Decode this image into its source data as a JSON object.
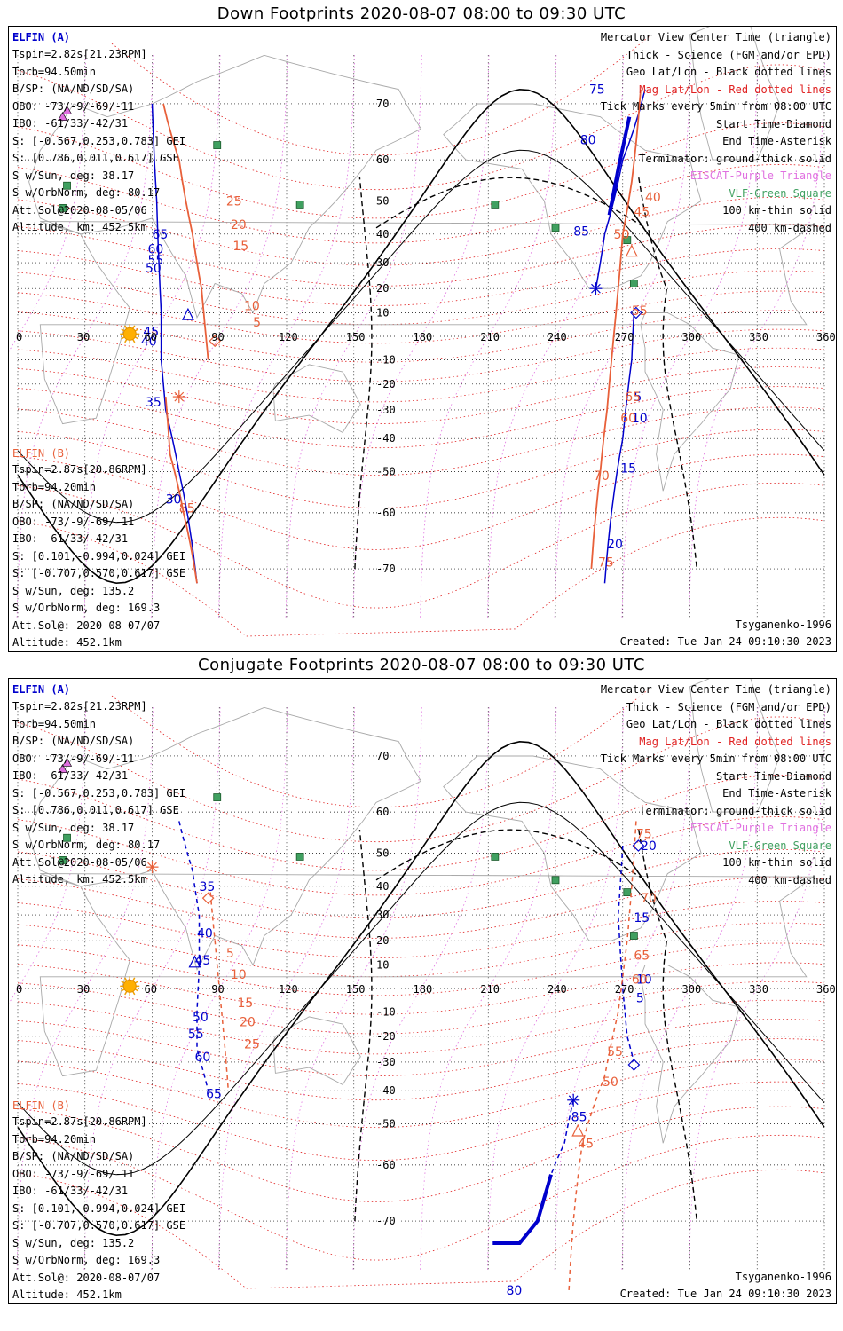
{
  "panels": [
    {
      "title": "Down Footprints 2020-08-07 08:00 to 09:30 UTC",
      "sat_a": {
        "name": "ELFIN (A)",
        "lines": [
          "Tspin=2.82s[21.23RPM]",
          "Torb=94.50min",
          "B/SP: (NA/ND/SD/SA)",
          "OBO: -73/-9/-69/-11",
          "IBO: -61/33/-42/31",
          "S: [-0.567,0.253,0.783] GEI",
          "S: [0.786,0.011,0.617] GSE",
          "S w/Sun, deg: 38.17",
          "S w/OrbNorm, deg: 80.17",
          "Att.Sol@2020-08-05/06",
          "Altitude, km: 452.5km"
        ]
      },
      "sat_b": {
        "name": "ELFIN (B)",
        "lines": [
          "Tspin=2.87s[20.86RPM]",
          "Torb=94.20min",
          "B/SP: (NA/ND/SD/SA)",
          "OBO: -73/-9/-69/-11",
          "IBO: -61/33/-42/31",
          "S: [0.101,-0.994,0.024] GEI",
          "S: [-0.707,0.570,0.617] GSE",
          "S w/Sun, deg: 135.2",
          "S w/OrbNorm, deg: 169.3",
          "Att.Sol@: 2020-08-07/07",
          "Altitude: 452.1km"
        ]
      },
      "model": "Tsyganenko-1996",
      "created": "Created: Tue Jan 24 09:10:30 2023"
    },
    {
      "title": "Conjugate Footprints 2020-08-07 08:00 to 09:30 UTC",
      "sat_a": {
        "name": "ELFIN (A)",
        "lines": [
          "Tspin=2.82s[21.23RPM]",
          "Torb=94.50min",
          "B/SP: (NA/ND/SD/SA)",
          "OBO: -73/-9/-69/-11",
          "IBO: -61/33/-42/31",
          "S: [-0.567,0.253,0.783] GEI",
          "S: [0.786,0.011,0.617] GSE",
          "S w/Sun, deg: 38.17",
          "S w/OrbNorm, deg: 80.17",
          "Att.Sol@2020-08-05/06",
          "Altitude, km: 452.5km"
        ]
      },
      "sat_b": {
        "name": "ELFIN (B)",
        "lines": [
          "Tspin=2.87s[20.86RPM]",
          "Torb=94.20min",
          "B/SP: (NA/ND/SD/SA)",
          "OBO: -73/-9/-69/-11",
          "IBO: -61/33/-42/31",
          "S: [0.101,-0.994,0.024] GEI",
          "S: [-0.707,0.570,0.617] GSE",
          "S w/Sun, deg: 135.2",
          "S w/OrbNorm, deg: 169.3",
          "Att.Sol@: 2020-08-07/07",
          "Altitude: 452.1km"
        ]
      },
      "model": "Tsyganenko-1996",
      "created": "Created: Tue Jan 24 09:10:30 2023"
    }
  ],
  "legend": [
    {
      "text": "Mercator View Center Time (triangle)",
      "color": "#000000"
    },
    {
      "text": "Thick - Science (FGM and/or EPD)",
      "color": "#000000"
    },
    {
      "text": "Geo Lat/Lon - Black dotted lines",
      "color": "#000000"
    },
    {
      "text": "Mag Lat/Lon - Red dotted lines",
      "color": "#e02020"
    },
    {
      "text": "Tick Marks every 5min from 08:00 UTC",
      "color": "#000000"
    },
    {
      "text": "Start Time-Diamond",
      "color": "#000000"
    },
    {
      "text": "End Time-Asterisk",
      "color": "#000000"
    },
    {
      "text": "Terminator: ground-thick solid",
      "color": "#000000"
    },
    {
      "text": "EISCAT-Purple Triangle",
      "color": "#e070e0"
    },
    {
      "text": "VLF-Green Square",
      "color": "#40a060"
    },
    {
      "text": "100 km-thin solid",
      "color": "#000000"
    },
    {
      "text": "400 km-dashed",
      "color": "#000000"
    }
  ],
  "lon_ticks": [
    "0",
    "30",
    "60",
    "90",
    "120",
    "150",
    "180",
    "210",
    "240",
    "270",
    "300",
    "330",
    "360"
  ],
  "lat_ticks": [
    "70",
    "60",
    "50",
    "40",
    "30",
    "20",
    "10",
    "-10",
    "-20",
    "-30",
    "-40",
    "-50",
    "-60",
    "-70"
  ],
  "colors": {
    "sat_a": "#0000cc",
    "sat_b": "#e8603a",
    "mag_grid": "#e02020",
    "eiscat": "#e070e0",
    "vlf": "#40a060"
  },
  "chart_data": [
    {
      "type": "scatter",
      "title": "Down Footprints 2020-08-07 08:00 to 09:30 UTC",
      "xlim": [
        0,
        360
      ],
      "ylim": [
        -75,
        75
      ],
      "projection": "mercator",
      "series": [
        {
          "name": "ELFIN (A)",
          "tick_labels": [
            {
              "lon": 60,
              "lat": 40,
              "label": "65"
            },
            {
              "lon": 58,
              "lat": 35,
              "label": "60"
            },
            {
              "lon": 58,
              "lat": 31,
              "label": "55"
            },
            {
              "lon": 57,
              "lat": 28,
              "label": "50"
            },
            {
              "lon": 56,
              "lat": 2,
              "label": "45"
            },
            {
              "lon": 55,
              "lat": -2,
              "label": "40"
            },
            {
              "lon": 57,
              "lat": -27,
              "label": "35"
            },
            {
              "lon": 66,
              "lat": -57,
              "label": "30"
            },
            {
              "lon": 255,
              "lat": 72,
              "label": "75"
            },
            {
              "lon": 251,
              "lat": 64,
              "label": "80"
            },
            {
              "lon": 248,
              "lat": 41,
              "label": "85"
            },
            {
              "lon": 275,
              "lat": -25,
              "label": "5"
            },
            {
              "lon": 274,
              "lat": -33,
              "label": "10"
            },
            {
              "lon": 269,
              "lat": -49,
              "label": "15"
            },
            {
              "lon": 263,
              "lat": -66,
              "label": "20"
            }
          ]
        },
        {
          "name": "ELFIN (B)",
          "tick_labels": [
            {
              "lon": 93,
              "lat": 50,
              "label": "25"
            },
            {
              "lon": 95,
              "lat": 43,
              "label": "20"
            },
            {
              "lon": 96,
              "lat": 36,
              "label": "15"
            },
            {
              "lon": 101,
              "lat": 13,
              "label": "10"
            },
            {
              "lon": 105,
              "lat": 6,
              "label": "5"
            },
            {
              "lon": 72,
              "lat": -59,
              "label": "85"
            },
            {
              "lon": 280,
              "lat": 51,
              "label": "40"
            },
            {
              "lon": 275,
              "lat": 47,
              "label": "45"
            },
            {
              "lon": 266,
              "lat": 40,
              "label": "50"
            },
            {
              "lon": 274,
              "lat": 11,
              "label": "55"
            },
            {
              "lon": 271,
              "lat": -25,
              "label": "65"
            },
            {
              "lon": 269,
              "lat": -33,
              "label": "60"
            },
            {
              "lon": 257,
              "lat": -51,
              "label": "70"
            },
            {
              "lon": 259,
              "lat": -69,
              "label": "75"
            }
          ]
        }
      ]
    },
    {
      "type": "scatter",
      "title": "Conjugate Footprints 2020-08-07 08:00 to 09:30 UTC",
      "xlim": [
        0,
        360
      ],
      "ylim": [
        -75,
        75
      ],
      "projection": "mercator",
      "series": [
        {
          "name": "ELFIN (A)",
          "tick_labels": [
            {
              "lon": 81,
              "lat": 40,
              "label": "35"
            },
            {
              "lon": 80,
              "lat": 23,
              "label": "40"
            },
            {
              "lon": 79,
              "lat": 12,
              "label": "45"
            },
            {
              "lon": 78,
              "lat": -12,
              "label": "50"
            },
            {
              "lon": 76,
              "lat": -19,
              "label": "55"
            },
            {
              "lon": 79,
              "lat": -28,
              "label": "60"
            },
            {
              "lon": 84,
              "lat": -41,
              "label": "65"
            },
            {
              "lon": 247,
              "lat": -48,
              "label": "85"
            },
            {
              "lon": 218,
              "lat": -78,
              "label": "80"
            },
            {
              "lon": 278,
              "lat": 52,
              "label": "20"
            },
            {
              "lon": 275,
              "lat": 29,
              "label": "15"
            },
            {
              "lon": 276,
              "lat": 4,
              "label": "10"
            },
            {
              "lon": 276,
              "lat": -4,
              "label": "5"
            }
          ]
        },
        {
          "name": "ELFIN (B)",
          "tick_labels": [
            {
              "lon": 93,
              "lat": 15,
              "label": "5"
            },
            {
              "lon": 95,
              "lat": 6,
              "label": "10"
            },
            {
              "lon": 98,
              "lat": -6,
              "label": "15"
            },
            {
              "lon": 99,
              "lat": -14,
              "label": "20"
            },
            {
              "lon": 101,
              "lat": -23,
              "label": "25"
            },
            {
              "lon": 276,
              "lat": 55,
              "label": "75"
            },
            {
              "lon": 278,
              "lat": 36,
              "label": "70"
            },
            {
              "lon": 275,
              "lat": 14,
              "label": "65"
            },
            {
              "lon": 274,
              "lat": 4,
              "label": "60"
            },
            {
              "lon": 263,
              "lat": -26,
              "label": "55"
            },
            {
              "lon": 261,
              "lat": -37,
              "label": "50"
            },
            {
              "lon": 250,
              "lat": -55,
              "label": "45"
            }
          ]
        }
      ]
    }
  ]
}
